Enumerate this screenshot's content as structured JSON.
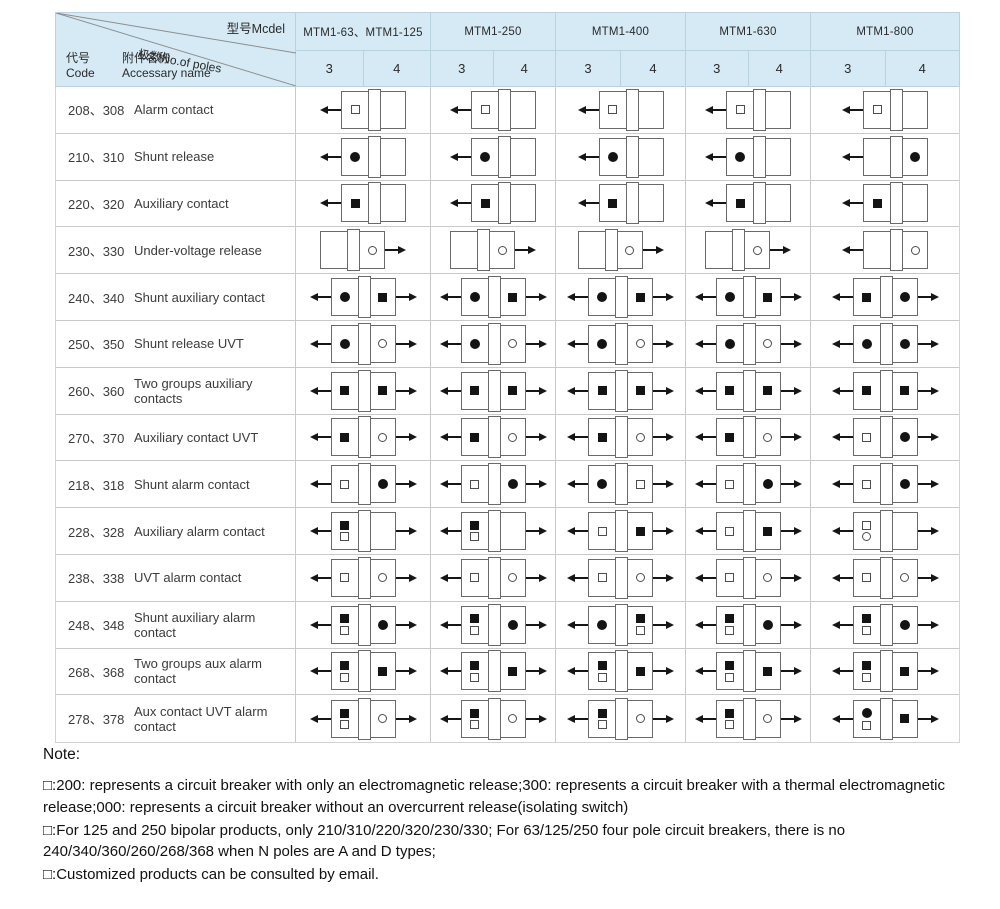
{
  "header": {
    "model_label": "型号Mcdel",
    "poles_label": "极数No.of poles",
    "code_label_cn": "代号",
    "code_label_en": "Code",
    "name_label_cn": "附件名称",
    "name_label_en": "Accessary name",
    "models": [
      "MTM1-63、MTM1-125",
      "MTM1-250",
      "MTM1-400",
      "MTM1-630",
      "MTM1-800"
    ],
    "pole_counts": [
      "3",
      "4"
    ]
  },
  "symbols_legend": {
    "sf": "filled-square",
    "sh": "hollow-square",
    "cf": "filled-circle",
    "ch": "hollow-circle"
  },
  "colors": {
    "header_bg": "#d5eaf5",
    "grid": "#c9c9c9",
    "ink": "#161616"
  },
  "rows": [
    {
      "code": "208、308",
      "name": "Alarm contact",
      "diagrams": [
        {
          "l": 1,
          "r": 0,
          "c1": [
            "sh"
          ],
          "c3": []
        },
        {
          "l": 1,
          "r": 0,
          "c1": [
            "sh"
          ],
          "c3": []
        },
        {
          "l": 1,
          "r": 0,
          "c1": [
            "sh"
          ],
          "c3": []
        },
        {
          "l": 1,
          "r": 0,
          "c1": [
            "sh"
          ],
          "c3": []
        },
        {
          "l": 1,
          "r": 0,
          "c1": [
            "sh"
          ],
          "c3": []
        }
      ]
    },
    {
      "code": "210、310",
      "name": "Shunt release",
      "diagrams": [
        {
          "l": 1,
          "r": 0,
          "c1": [
            "cf"
          ],
          "c3": []
        },
        {
          "l": 1,
          "r": 0,
          "c1": [
            "cf"
          ],
          "c3": []
        },
        {
          "l": 1,
          "r": 0,
          "c1": [
            "cf"
          ],
          "c3": []
        },
        {
          "l": 1,
          "r": 0,
          "c1": [
            "cf"
          ],
          "c3": []
        },
        {
          "l": 1,
          "r": 0,
          "c1": [],
          "c3": [
            "cf"
          ]
        }
      ]
    },
    {
      "code": "220、320",
      "name": "Auxiliary contact",
      "diagrams": [
        {
          "l": 1,
          "r": 0,
          "c1": [
            "sf"
          ],
          "c3": []
        },
        {
          "l": 1,
          "r": 0,
          "c1": [
            "sf"
          ],
          "c3": []
        },
        {
          "l": 1,
          "r": 0,
          "c1": [
            "sf"
          ],
          "c3": []
        },
        {
          "l": 1,
          "r": 0,
          "c1": [
            "sf"
          ],
          "c3": []
        },
        {
          "l": 1,
          "r": 0,
          "c1": [
            "sf"
          ],
          "c3": []
        }
      ]
    },
    {
      "code": "230、330",
      "name": "Under-voltage release",
      "diagrams": [
        {
          "l": 0,
          "r": 1,
          "c1": [],
          "c3": [
            "ch"
          ]
        },
        {
          "l": 0,
          "r": 1,
          "c1": [],
          "c3": [
            "ch"
          ]
        },
        {
          "l": 0,
          "r": 1,
          "c1": [],
          "c3": [
            "ch"
          ]
        },
        {
          "l": 0,
          "r": 1,
          "c1": [],
          "c3": [
            "ch"
          ]
        },
        {
          "l": 1,
          "r": 0,
          "c1": [],
          "c3": [
            "ch"
          ]
        }
      ]
    },
    {
      "code": "240、340",
      "name": "Shunt auxiliary contact",
      "diagrams": [
        {
          "l": 1,
          "r": 1,
          "c1": [
            "cf"
          ],
          "c3": [
            "sf"
          ]
        },
        {
          "l": 1,
          "r": 1,
          "c1": [
            "cf"
          ],
          "c3": [
            "sf"
          ]
        },
        {
          "l": 1,
          "r": 1,
          "c1": [
            "cf"
          ],
          "c3": [
            "sf"
          ]
        },
        {
          "l": 1,
          "r": 1,
          "c1": [
            "cf"
          ],
          "c3": [
            "sf"
          ]
        },
        {
          "l": 1,
          "r": 1,
          "c1": [
            "sf"
          ],
          "c3": [
            "cf"
          ]
        }
      ]
    },
    {
      "code": "250、350",
      "name": "Shunt release UVT",
      "diagrams": [
        {
          "l": 1,
          "r": 1,
          "c1": [
            "cf"
          ],
          "c3": [
            "ch"
          ]
        },
        {
          "l": 1,
          "r": 1,
          "c1": [
            "cf"
          ],
          "c3": [
            "ch"
          ]
        },
        {
          "l": 1,
          "r": 1,
          "c1": [
            "cf"
          ],
          "c3": [
            "ch"
          ]
        },
        {
          "l": 1,
          "r": 1,
          "c1": [
            "cf"
          ],
          "c3": [
            "ch"
          ]
        },
        {
          "l": 1,
          "r": 1,
          "c1": [
            "cf"
          ],
          "c3": [
            "cf"
          ]
        }
      ]
    },
    {
      "code": "260、360",
      "name": "Two groups auxiliary contacts",
      "diagrams": [
        {
          "l": 1,
          "r": 1,
          "c1": [
            "sf"
          ],
          "c3": [
            "sf"
          ]
        },
        {
          "l": 1,
          "r": 1,
          "c1": [
            "sf"
          ],
          "c3": [
            "sf"
          ]
        },
        {
          "l": 1,
          "r": 1,
          "c1": [
            "sf"
          ],
          "c3": [
            "sf"
          ]
        },
        {
          "l": 1,
          "r": 1,
          "c1": [
            "sf"
          ],
          "c3": [
            "sf"
          ]
        },
        {
          "l": 1,
          "r": 1,
          "c1": [
            "sf"
          ],
          "c3": [
            "sf"
          ]
        }
      ]
    },
    {
      "code": "270、370",
      "name": "Auxiliary contact UVT",
      "diagrams": [
        {
          "l": 1,
          "r": 1,
          "c1": [
            "sf"
          ],
          "c3": [
            "ch"
          ]
        },
        {
          "l": 1,
          "r": 1,
          "c1": [
            "sf"
          ],
          "c3": [
            "ch"
          ]
        },
        {
          "l": 1,
          "r": 1,
          "c1": [
            "sf"
          ],
          "c3": [
            "ch"
          ]
        },
        {
          "l": 1,
          "r": 1,
          "c1": [
            "sf"
          ],
          "c3": [
            "ch"
          ]
        },
        {
          "l": 1,
          "r": 1,
          "c1": [
            "sh"
          ],
          "c3": [
            "cf"
          ]
        }
      ]
    },
    {
      "code": "218、318",
      "name": "Shunt alarm contact",
      "diagrams": [
        {
          "l": 1,
          "r": 1,
          "c1": [
            "sh"
          ],
          "c3": [
            "cf"
          ]
        },
        {
          "l": 1,
          "r": 1,
          "c1": [
            "sh"
          ],
          "c3": [
            "cf"
          ]
        },
        {
          "l": 1,
          "r": 1,
          "c1": [
            "cf"
          ],
          "c3": [
            "sh"
          ]
        },
        {
          "l": 1,
          "r": 1,
          "c1": [
            "sh"
          ],
          "c3": [
            "cf"
          ]
        },
        {
          "l": 1,
          "r": 1,
          "c1": [
            "sh"
          ],
          "c3": [
            "cf"
          ]
        }
      ]
    },
    {
      "code": "228、328",
      "name": "Auxiliary alarm contact",
      "diagrams": [
        {
          "l": 1,
          "r": 1,
          "c1": [
            "sf",
            "sh"
          ],
          "c3": []
        },
        {
          "l": 1,
          "r": 1,
          "c1": [
            "sf",
            "sh"
          ],
          "c3": []
        },
        {
          "l": 1,
          "r": 1,
          "c1": [
            "sh"
          ],
          "c3": [
            "sf"
          ]
        },
        {
          "l": 1,
          "r": 1,
          "c1": [
            "sh"
          ],
          "c3": [
            "sf"
          ]
        },
        {
          "l": 1,
          "r": 1,
          "c1": [
            "sh",
            "ch"
          ],
          "c3": []
        }
      ]
    },
    {
      "code": "238、338",
      "name": "UVT alarm contact",
      "diagrams": [
        {
          "l": 1,
          "r": 1,
          "c1": [
            "sh"
          ],
          "c3": [
            "ch"
          ]
        },
        {
          "l": 1,
          "r": 1,
          "c1": [
            "sh"
          ],
          "c3": [
            "ch"
          ]
        },
        {
          "l": 1,
          "r": 1,
          "c1": [
            "sh"
          ],
          "c3": [
            "ch"
          ]
        },
        {
          "l": 1,
          "r": 1,
          "c1": [
            "sh"
          ],
          "c3": [
            "ch"
          ]
        },
        {
          "l": 1,
          "r": 1,
          "c1": [
            "sh"
          ],
          "c3": [
            "ch"
          ]
        }
      ]
    },
    {
      "code": "248、348",
      "name": "Shunt auxiliary alarm contact",
      "diagrams": [
        {
          "l": 1,
          "r": 1,
          "c1": [
            "sf",
            "sh"
          ],
          "c3": [
            "cf"
          ]
        },
        {
          "l": 1,
          "r": 1,
          "c1": [
            "sf",
            "sh"
          ],
          "c3": [
            "cf"
          ]
        },
        {
          "l": 1,
          "r": 1,
          "c1": [
            "cf"
          ],
          "c3": [
            "sf",
            "sh"
          ]
        },
        {
          "l": 1,
          "r": 1,
          "c1": [
            "sf",
            "sh"
          ],
          "c3": [
            "cf"
          ]
        },
        {
          "l": 1,
          "r": 1,
          "c1": [
            "sf",
            "sh"
          ],
          "c3": [
            "cf"
          ]
        }
      ]
    },
    {
      "code": "268、368",
      "name": "Two groups aux alarm contact",
      "diagrams": [
        {
          "l": 1,
          "r": 1,
          "c1": [
            "sf",
            "sh"
          ],
          "c3": [
            "sf"
          ]
        },
        {
          "l": 1,
          "r": 1,
          "c1": [
            "sf",
            "sh"
          ],
          "c3": [
            "sf"
          ]
        },
        {
          "l": 1,
          "r": 1,
          "c1": [
            "sf",
            "sh"
          ],
          "c3": [
            "sf"
          ]
        },
        {
          "l": 1,
          "r": 1,
          "c1": [
            "sf",
            "sh"
          ],
          "c3": [
            "sf"
          ]
        },
        {
          "l": 1,
          "r": 1,
          "c1": [
            "sf",
            "sh"
          ],
          "c3": [
            "sf"
          ]
        }
      ]
    },
    {
      "code": "278、378",
      "name": "Aux contact UVT alarm contact",
      "diagrams": [
        {
          "l": 1,
          "r": 1,
          "c1": [
            "sf",
            "sh"
          ],
          "c3": [
            "ch"
          ]
        },
        {
          "l": 1,
          "r": 1,
          "c1": [
            "sf",
            "sh"
          ],
          "c3": [
            "ch"
          ]
        },
        {
          "l": 1,
          "r": 1,
          "c1": [
            "sf",
            "sh"
          ],
          "c3": [
            "ch"
          ]
        },
        {
          "l": 1,
          "r": 1,
          "c1": [
            "sf",
            "sh"
          ],
          "c3": [
            "ch"
          ]
        },
        {
          "l": 1,
          "r": 1,
          "c1": [
            "cf",
            "sh"
          ],
          "c3": [
            "sf"
          ]
        }
      ]
    }
  ],
  "note": {
    "title": "Note:",
    "items": [
      "□:200: represents a circuit breaker with only an electromagnetic release;300: represents a circuit breaker with a thermal electromagnetic release;000: represents a circuit breaker without an overcurrent release(isolating switch)",
      "□:For 125 and 250 bipolar products, only 210/310/220/320/230/330; For 63/125/250 four pole circuit breakers, there is no 240/340/360/260/268/368 when N poles are A and D types;",
      "□:Customized products can be consulted by email."
    ]
  }
}
